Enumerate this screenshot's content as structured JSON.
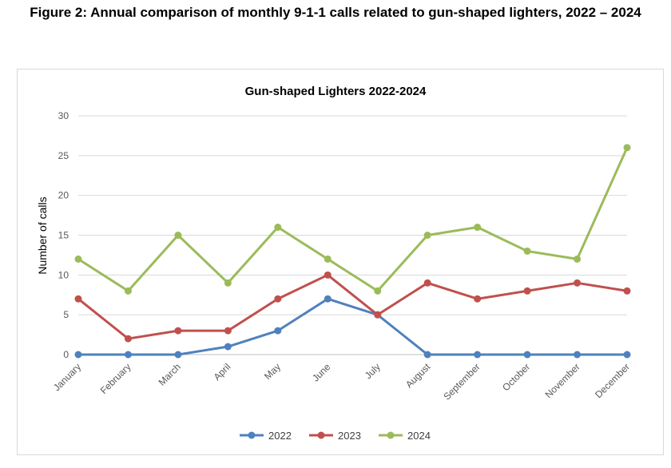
{
  "figure_caption": "Figure 2: Annual comparison of monthly 9-1-1 calls related to gun-shaped lighters, 2022 – 2024",
  "chart_data": {
    "type": "line",
    "title": "Gun-shaped Lighters 2022-2024",
    "xlabel": "",
    "ylabel": "Number of calls",
    "ylim": [
      0,
      30
    ],
    "yticks": [
      0,
      5,
      10,
      15,
      20,
      25,
      30
    ],
    "grid": true,
    "legend_position": "bottom",
    "categories": [
      "January",
      "February",
      "March",
      "April",
      "May",
      "June",
      "July",
      "August",
      "September",
      "October",
      "November",
      "December"
    ],
    "series": [
      {
        "name": "2022",
        "color": "#4f81bd",
        "values": [
          0,
          0,
          0,
          1,
          3,
          7,
          5,
          0,
          0,
          0,
          0,
          0
        ]
      },
      {
        "name": "2023",
        "color": "#c0504d",
        "values": [
          7,
          2,
          3,
          3,
          7,
          10,
          5,
          9,
          7,
          8,
          9,
          8
        ]
      },
      {
        "name": "2024",
        "color": "#9bbb59",
        "values": [
          12,
          8,
          15,
          9,
          16,
          12,
          8,
          15,
          16,
          13,
          12,
          26
        ]
      }
    ]
  }
}
